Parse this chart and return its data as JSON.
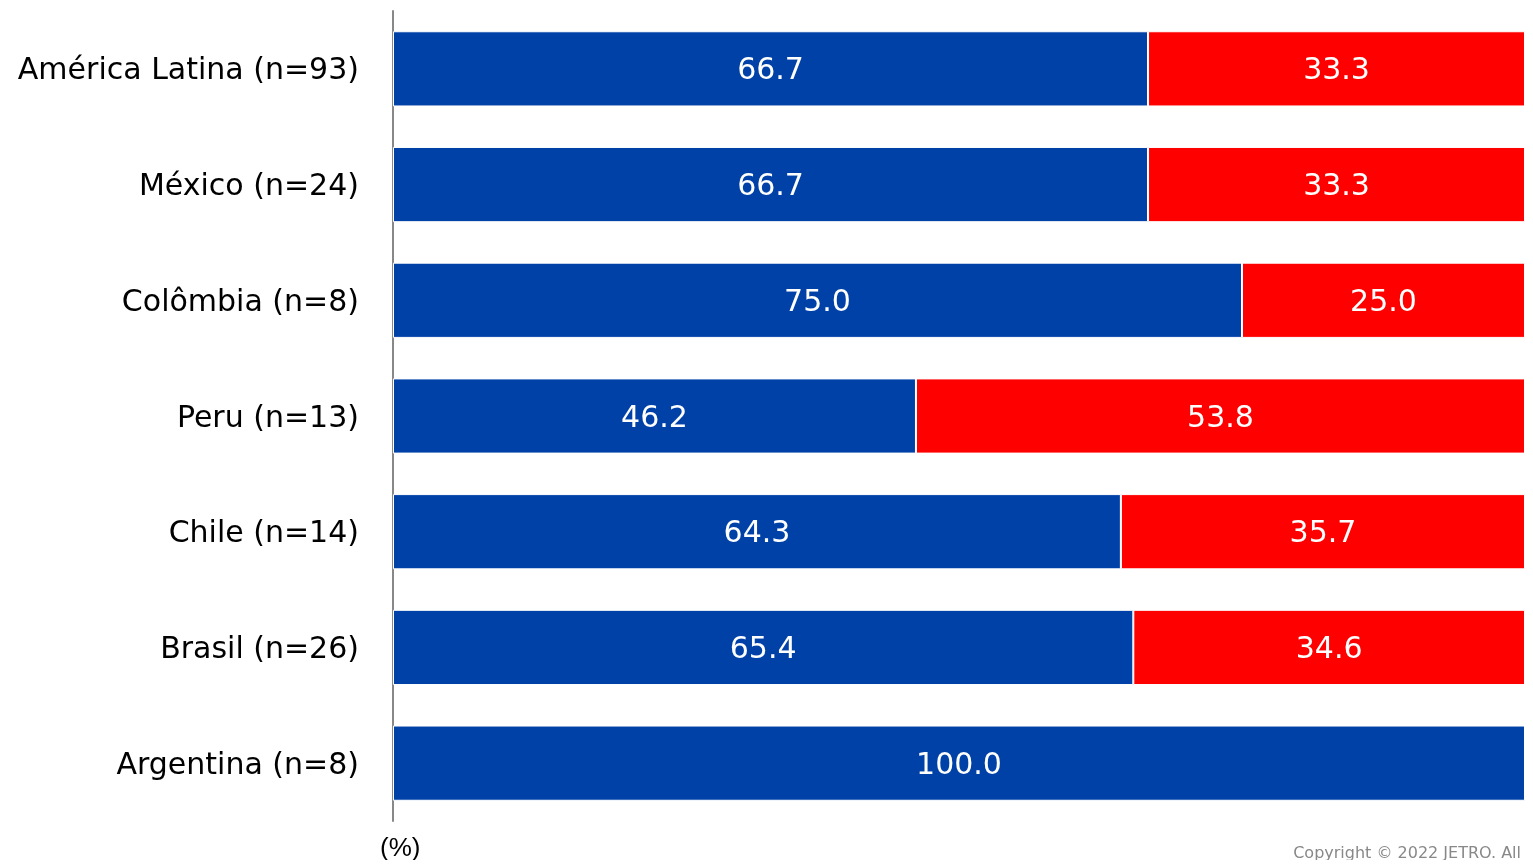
{
  "chart_data": {
    "type": "bar",
    "orientation": "horizontal",
    "stacked": true,
    "xlabel": "(%)",
    "xlim": [
      0,
      100
    ],
    "tick_labels": "y",
    "grid": false,
    "categories": [
      "América Latina (n=93)",
      "México (n=24)",
      "Colômbia (n=8)",
      "Peru (n=13)",
      "Chile (n=14)",
      "Brasil (n=26)",
      "Argentina (n=8)"
    ],
    "series": [
      {
        "color": "#0041a8",
        "values": [
          66.7,
          66.7,
          75.0,
          46.2,
          64.3,
          65.4,
          100.0
        ],
        "value_labels": [
          "66.7",
          "66.7",
          "75.0",
          "46.2",
          "64.3",
          "65.4",
          "100.0"
        ]
      },
      {
        "color": "#ff0000",
        "values": [
          33.3,
          33.3,
          25.0,
          53.8,
          35.7,
          34.6,
          null
        ],
        "value_labels": [
          "33.3",
          "33.3",
          "25.0",
          "53.8",
          "35.7",
          "34.6",
          null
        ]
      }
    ],
    "annotations": [
      "Copyright © 2022 JETRO. All"
    ]
  }
}
